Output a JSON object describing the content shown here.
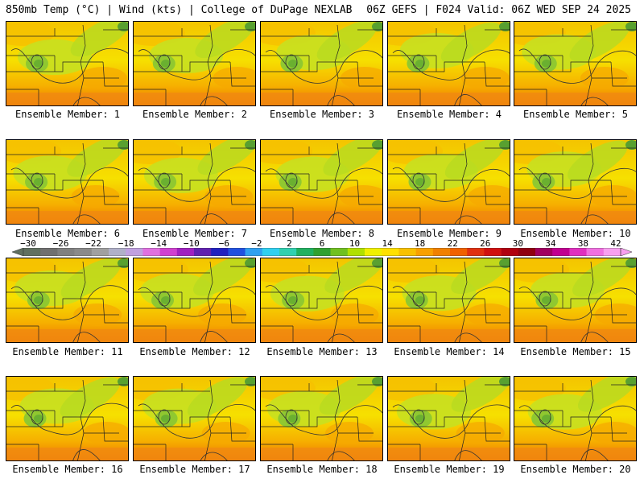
{
  "header": {
    "left": "850mb Temp (°C) | Wind (kts) | College of DuPage NEXLAB",
    "right": "06Z GEFS | F024 Valid: 06Z WED SEP 24 2025"
  },
  "members": [
    "Ensemble Member: 1",
    "Ensemble Member: 2",
    "Ensemble Member: 3",
    "Ensemble Member: 4",
    "Ensemble Member: 5",
    "Ensemble Member: 6",
    "Ensemble Member: 7",
    "Ensemble Member: 8",
    "Ensemble Member: 9",
    "Ensemble Member: 10",
    "Ensemble Member: 11",
    "Ensemble Member: 12",
    "Ensemble Member: 13",
    "Ensemble Member: 14",
    "Ensemble Member: 15",
    "Ensemble Member: 16",
    "Ensemble Member: 17",
    "Ensemble Member: 18",
    "Ensemble Member: 19",
    "Ensemble Member: 20"
  ],
  "colorbar": {
    "labels": [
      "-30",
      "-26",
      "-22",
      "-18",
      "-14",
      "-10",
      "-6",
      "-2",
      "2",
      "6",
      "10",
      "14",
      "18",
      "22",
      "26",
      "30",
      "34",
      "38",
      "42"
    ],
    "colors": [
      "#607060",
      "#707070",
      "#808080",
      "#8a8a8a",
      "#a0a0a0",
      "#b0b0c8",
      "#c0a0e0",
      "#e070e0",
      "#d040d0",
      "#a020c0",
      "#6020b0",
      "#2020c0",
      "#2050e0",
      "#30a0f0",
      "#30d0f0",
      "#30d0b0",
      "#20b060",
      "#30a030",
      "#70c020",
      "#b0e000",
      "#f0f000",
      "#ffe000",
      "#f8c000",
      "#f8a000",
      "#f08000",
      "#f06000",
      "#e03010",
      "#d01010",
      "#b00010",
      "#900010",
      "#a00060",
      "#c00090",
      "#e030c0",
      "#f070e0",
      "#f8a0f0"
    ]
  }
}
